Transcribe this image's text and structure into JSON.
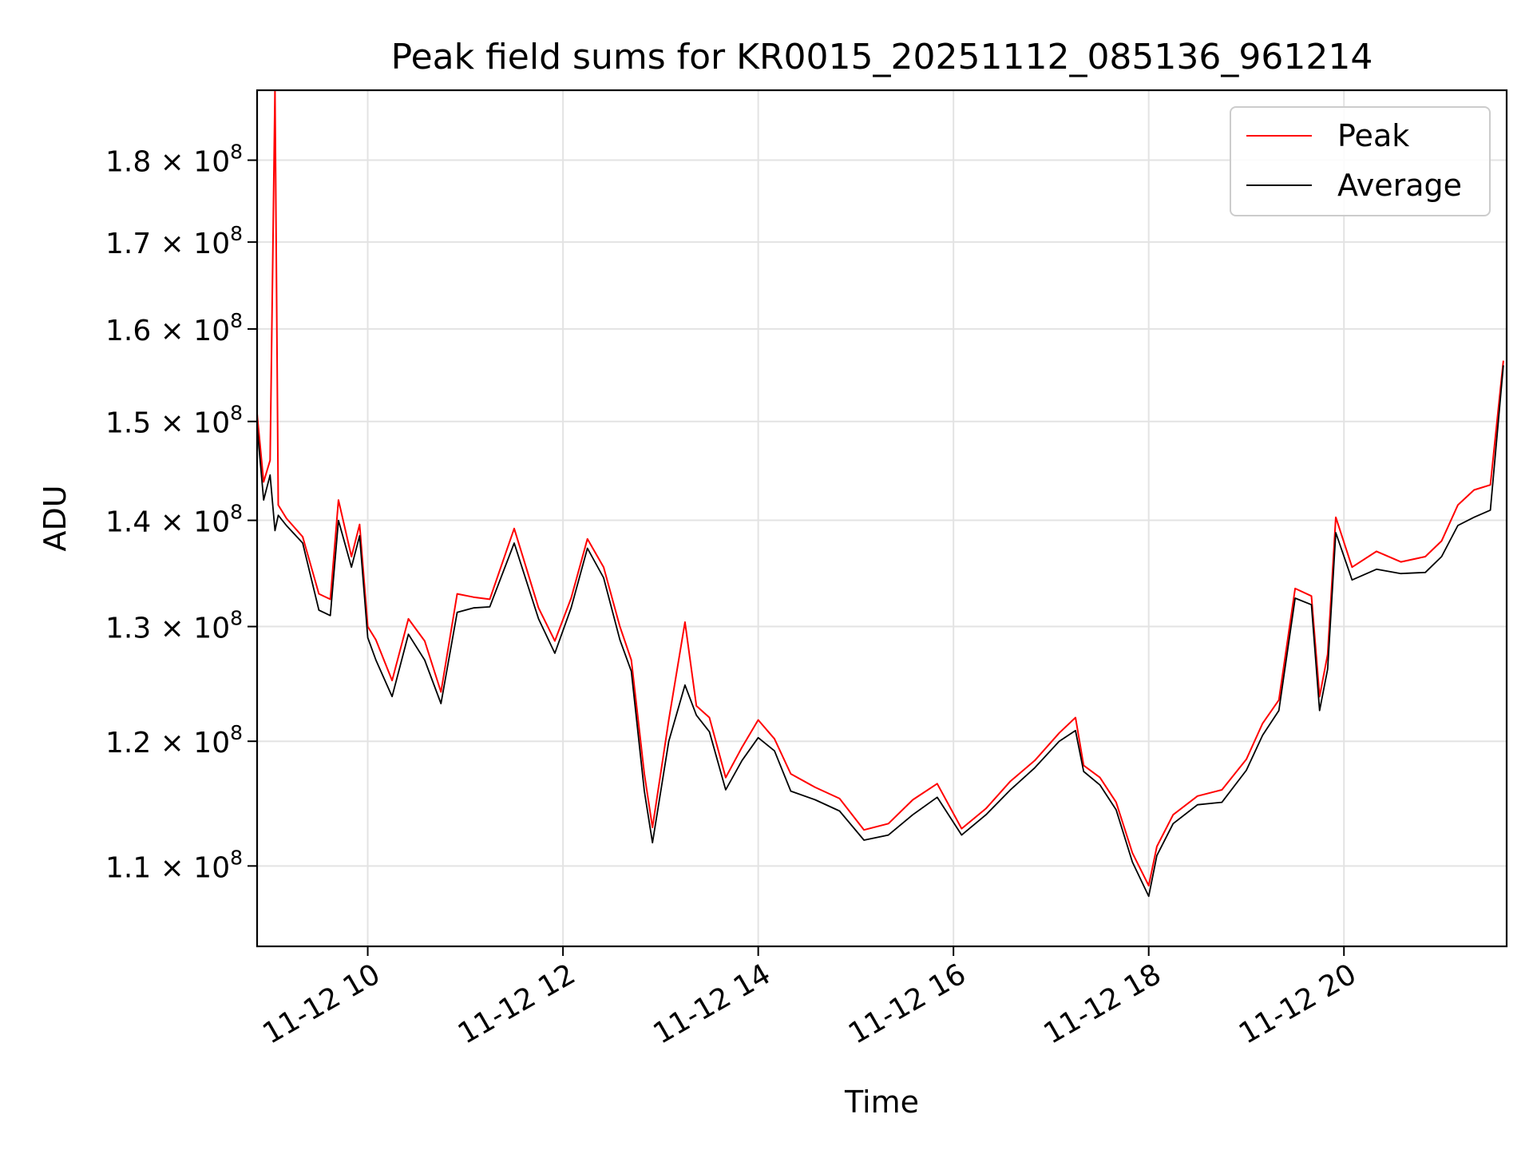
{
  "chart_data": {
    "type": "line",
    "title": "Peak field sums for KR0015_20251112_085136_961214",
    "xlabel": "Time",
    "ylabel": "ADU",
    "x_ticks": [
      "11-12 10",
      "11-12 12",
      "11-12 14",
      "11-12 16",
      "11-12 18",
      "11-12 20"
    ],
    "y_ticks": [
      {
        "value": 110000000,
        "mantissa": "1.1",
        "exp": "8"
      },
      {
        "value": 120000000,
        "mantissa": "1.2",
        "exp": "8"
      },
      {
        "value": 130000000,
        "mantissa": "1.3",
        "exp": "8"
      },
      {
        "value": 140000000,
        "mantissa": "1.4",
        "exp": "8"
      },
      {
        "value": 150000000,
        "mantissa": "1.5",
        "exp": "8"
      },
      {
        "value": 160000000,
        "mantissa": "1.6",
        "exp": "8"
      },
      {
        "value": 170000000,
        "mantissa": "1.7",
        "exp": "8"
      },
      {
        "value": 180000000,
        "mantissa": "1.8",
        "exp": "8"
      }
    ],
    "y_scale": "log",
    "xlim": [
      "2025-11-12 08:52",
      "2025-11-12 21:40"
    ],
    "ylim": [
      104000000,
      189000000
    ],
    "grid": true,
    "legend_placement": "top-right",
    "series": [
      {
        "name": "Peak",
        "color": "#ff0000",
        "x": [
          "2025-11-12 08:52",
          "2025-11-12 08:56",
          "2025-11-12 09:00",
          "2025-11-12 09:03",
          "2025-11-12 09:05",
          "2025-11-12 09:10",
          "2025-11-12 09:20",
          "2025-11-12 09:30",
          "2025-11-12 09:37",
          "2025-11-12 09:42",
          "2025-11-12 09:50",
          "2025-11-12 09:55",
          "2025-11-12 10:00",
          "2025-11-12 10:05",
          "2025-11-12 10:15",
          "2025-11-12 10:25",
          "2025-11-12 10:35",
          "2025-11-12 10:45",
          "2025-11-12 10:55",
          "2025-11-12 11:05",
          "2025-11-12 11:15",
          "2025-11-12 11:30",
          "2025-11-12 11:45",
          "2025-11-12 11:55",
          "2025-11-12 12:05",
          "2025-11-12 12:15",
          "2025-11-12 12:25",
          "2025-11-12 12:35",
          "2025-11-12 12:42",
          "2025-11-12 12:50",
          "2025-11-12 12:55",
          "2025-11-12 13:05",
          "2025-11-12 13:15",
          "2025-11-12 13:22",
          "2025-11-12 13:30",
          "2025-11-12 13:40",
          "2025-11-12 13:50",
          "2025-11-12 14:00",
          "2025-11-12 14:10",
          "2025-11-12 14:20",
          "2025-11-12 14:35",
          "2025-11-12 14:50",
          "2025-11-12 15:05",
          "2025-11-12 15:20",
          "2025-11-12 15:35",
          "2025-11-12 15:50",
          "2025-11-12 16:05",
          "2025-11-12 16:20",
          "2025-11-12 16:35",
          "2025-11-12 16:50",
          "2025-11-12 17:05",
          "2025-11-12 17:15",
          "2025-11-12 17:20",
          "2025-11-12 17:30",
          "2025-11-12 17:40",
          "2025-11-12 17:50",
          "2025-11-12 18:00",
          "2025-11-12 18:05",
          "2025-11-12 18:15",
          "2025-11-12 18:30",
          "2025-11-12 18:45",
          "2025-11-12 19:00",
          "2025-11-12 19:10",
          "2025-11-12 19:20",
          "2025-11-12 19:30",
          "2025-11-12 19:40",
          "2025-11-12 19:45",
          "2025-11-12 19:50",
          "2025-11-12 19:55",
          "2025-11-12 20:05",
          "2025-11-12 20:20",
          "2025-11-12 20:35",
          "2025-11-12 20:50",
          "2025-11-12 21:00",
          "2025-11-12 21:10",
          "2025-11-12 21:20",
          "2025-11-12 21:30",
          "2025-11-12 21:38"
        ],
        "y": [
          150800000,
          143800000,
          146000000,
          189000000,
          141500000,
          140200000,
          138400000,
          133000000,
          132500000,
          142000000,
          136500000,
          139600000,
          130000000,
          128800000,
          125200000,
          130700000,
          128700000,
          124200000,
          133000000,
          132700000,
          132500000,
          139200000,
          131700000,
          128700000,
          132600000,
          138200000,
          135500000,
          130000000,
          127000000,
          117300000,
          113000000,
          121800000,
          130400000,
          123000000,
          122000000,
          117000000,
          119500000,
          121800000,
          120200000,
          117300000,
          116200000,
          115300000,
          112800000,
          113300000,
          115200000,
          116500000,
          112900000,
          114500000,
          116700000,
          118400000,
          120700000,
          122000000,
          118000000,
          117000000,
          115000000,
          111000000,
          108500000,
          111500000,
          114000000,
          115500000,
          116000000,
          118500000,
          121500000,
          123500000,
          133500000,
          132800000,
          123800000,
          127500000,
          140300000,
          135500000,
          137000000,
          136000000,
          136500000,
          138000000,
          141500000,
          143000000,
          143500000,
          156500000
        ]
      },
      {
        "name": "Average",
        "color": "#000000",
        "x": [
          "2025-11-12 08:52",
          "2025-11-12 08:56",
          "2025-11-12 09:00",
          "2025-11-12 09:03",
          "2025-11-12 09:05",
          "2025-11-12 09:10",
          "2025-11-12 09:20",
          "2025-11-12 09:30",
          "2025-11-12 09:37",
          "2025-11-12 09:42",
          "2025-11-12 09:50",
          "2025-11-12 09:55",
          "2025-11-12 10:00",
          "2025-11-12 10:05",
          "2025-11-12 10:15",
          "2025-11-12 10:25",
          "2025-11-12 10:35",
          "2025-11-12 10:45",
          "2025-11-12 10:55",
          "2025-11-12 11:05",
          "2025-11-12 11:15",
          "2025-11-12 11:30",
          "2025-11-12 11:45",
          "2025-11-12 11:55",
          "2025-11-12 12:05",
          "2025-11-12 12:15",
          "2025-11-12 12:25",
          "2025-11-12 12:35",
          "2025-11-12 12:42",
          "2025-11-12 12:50",
          "2025-11-12 12:55",
          "2025-11-12 13:05",
          "2025-11-12 13:15",
          "2025-11-12 13:22",
          "2025-11-12 13:30",
          "2025-11-12 13:40",
          "2025-11-12 13:50",
          "2025-11-12 14:00",
          "2025-11-12 14:10",
          "2025-11-12 14:20",
          "2025-11-12 14:35",
          "2025-11-12 14:50",
          "2025-11-12 15:05",
          "2025-11-12 15:20",
          "2025-11-12 15:35",
          "2025-11-12 15:50",
          "2025-11-12 16:05",
          "2025-11-12 16:20",
          "2025-11-12 16:35",
          "2025-11-12 16:50",
          "2025-11-12 17:05",
          "2025-11-12 17:15",
          "2025-11-12 17:20",
          "2025-11-12 17:30",
          "2025-11-12 17:40",
          "2025-11-12 17:50",
          "2025-11-12 18:00",
          "2025-11-12 18:05",
          "2025-11-12 18:15",
          "2025-11-12 18:30",
          "2025-11-12 18:45",
          "2025-11-12 19:00",
          "2025-11-12 19:10",
          "2025-11-12 19:20",
          "2025-11-12 19:30",
          "2025-11-12 19:40",
          "2025-11-12 19:45",
          "2025-11-12 19:50",
          "2025-11-12 19:55",
          "2025-11-12 20:05",
          "2025-11-12 20:20",
          "2025-11-12 20:35",
          "2025-11-12 20:50",
          "2025-11-12 21:00",
          "2025-11-12 21:10",
          "2025-11-12 21:20",
          "2025-11-12 21:30",
          "2025-11-12 21:38"
        ],
        "y": [
          149500000,
          142000000,
          144500000,
          139000000,
          140500000,
          139500000,
          137800000,
          131500000,
          131000000,
          140000000,
          135500000,
          138500000,
          129000000,
          127000000,
          123800000,
          129300000,
          127000000,
          123200000,
          131300000,
          131700000,
          131800000,
          137800000,
          130700000,
          127600000,
          131700000,
          137300000,
          134500000,
          128800000,
          126000000,
          115900000,
          111800000,
          120000000,
          124800000,
          122200000,
          120800000,
          116000000,
          118400000,
          120300000,
          119200000,
          115900000,
          115200000,
          114300000,
          112000000,
          112400000,
          114000000,
          115400000,
          112400000,
          114000000,
          116000000,
          117800000,
          120000000,
          120900000,
          117500000,
          116400000,
          114400000,
          110300000,
          107700000,
          110800000,
          113300000,
          114800000,
          115000000,
          117600000,
          120500000,
          122600000,
          132600000,
          132000000,
          122600000,
          126200000,
          138800000,
          134300000,
          135300000,
          134900000,
          135000000,
          136500000,
          139500000,
          140300000,
          141000000,
          156000000
        ]
      }
    ]
  }
}
